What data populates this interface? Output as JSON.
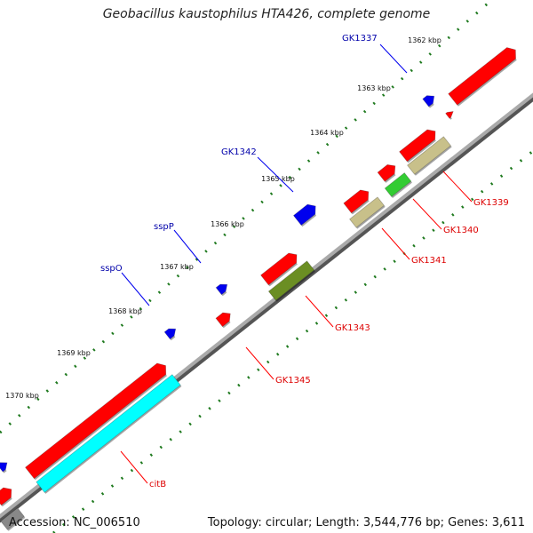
{
  "title": "Geobacillus kaustophilus HTA426, complete genome",
  "footer": {
    "accession": "Accession: NC_006510",
    "info": "Topology: circular; Length: 3,544,776 bp; Genes: 3,611"
  },
  "colors": {
    "backbone": "#888888",
    "tick": "#1f7a1f",
    "forward_gene": "#ff0000",
    "blue_gene": "#0000ee",
    "gene_label": "#dd0000",
    "blue_label": "#0000aa",
    "cyan": "#00ffff",
    "tan": "#c8c08a",
    "green": "#33cc33",
    "olive": "#6b8e23"
  },
  "ruler_labels": [
    "1362 kbp",
    "1363 kbp",
    "1364 kbp",
    "1365 kbp",
    "1366 kbp",
    "1367 kbp",
    "1368 kbp",
    "1369 kbp",
    "1370 kbp"
  ],
  "gene_labels_outer": [
    "GK1337",
    "GK1342",
    "sspP",
    "sspO"
  ],
  "gene_labels_inner": [
    "GK1339",
    "GK1340",
    "GK1341",
    "GK1343",
    "GK1345",
    "citB"
  ]
}
